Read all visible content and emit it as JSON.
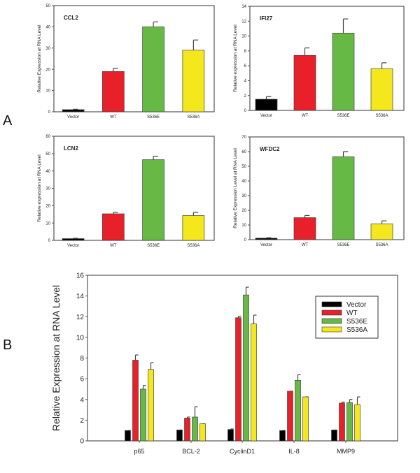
{
  "figure": {
    "panel_labels": [
      "A",
      "B"
    ]
  },
  "colors": {
    "Vector": "#000000",
    "WT": "#e8202a",
    "S536E": "#66b944",
    "S536A": "#f4e81c",
    "axis": "#555555"
  },
  "chart_data": [
    {
      "type": "bar",
      "panel": "A",
      "title": "CCL2",
      "ylabel": "Relative Expression at RNA Level",
      "categories": [
        "Vector",
        "WT",
        "S536E",
        "S536A"
      ],
      "values": [
        1,
        19,
        40,
        29
      ],
      "errors": [
        0.2,
        1.5,
        2.3,
        4.8
      ],
      "ylim": [
        0,
        50
      ],
      "yticks": [
        0,
        10,
        20,
        30,
        40,
        50
      ]
    },
    {
      "type": "bar",
      "panel": "A",
      "title": "IFI27",
      "ylabel": "Relative expression at RNA Level",
      "categories": [
        "Vector",
        "WT",
        "S536E",
        "S536A"
      ],
      "values": [
        1.5,
        7.4,
        10.4,
        5.6
      ],
      "errors": [
        0.35,
        1.0,
        1.9,
        0.8
      ],
      "ylim": [
        0,
        14
      ],
      "yticks": [
        0,
        2,
        4,
        6,
        8,
        10,
        12,
        14
      ]
    },
    {
      "type": "bar",
      "panel": "A",
      "title": "LCN2",
      "ylabel": "Relative expression at RNA Level",
      "categories": [
        "Vector",
        "WT",
        "S536E",
        "S536A"
      ],
      "values": [
        1,
        15.3,
        46.5,
        14.3
      ],
      "errors": [
        0.2,
        0.8,
        2,
        1.8
      ],
      "ylim": [
        0,
        60
      ],
      "yticks": [
        0,
        10,
        20,
        30,
        40,
        50,
        60
      ]
    },
    {
      "type": "bar",
      "panel": "A",
      "title": "WFDC2",
      "ylabel": "Relative Expression Level at RNA Level",
      "categories": [
        "Vector",
        "WT",
        "S536E",
        "S536A"
      ],
      "values": [
        1,
        15,
        56.5,
        10.8
      ],
      "errors": [
        0.3,
        1.5,
        3.5,
        2
      ],
      "ylim": [
        0,
        70
      ],
      "yticks": [
        0,
        10,
        20,
        30,
        40,
        50,
        60,
        70
      ]
    },
    {
      "type": "bar",
      "panel": "B",
      "title": "",
      "ylabel": "Relative Expression at RNA Level",
      "categories": [
        "p65",
        "BCL-2",
        "CyclinD1",
        "IL-8",
        "MMP9"
      ],
      "series": [
        {
          "name": "Vector",
          "values": [
            1,
            1.05,
            1.1,
            1.0,
            1.05
          ],
          "errors": [
            0,
            0,
            0.05,
            0,
            0
          ]
        },
        {
          "name": "WT",
          "values": [
            7.8,
            2.2,
            11.9,
            4.8,
            3.65
          ],
          "errors": [
            0.5,
            0.1,
            0.15,
            0,
            0.1
          ]
        },
        {
          "name": "S536E",
          "values": [
            5.0,
            2.3,
            14.1,
            5.85,
            3.7
          ],
          "errors": [
            0.35,
            1.0,
            0.75,
            0.55,
            0.3
          ]
        },
        {
          "name": "S536A",
          "values": [
            6.9,
            1.65,
            11.3,
            4.25,
            3.5
          ],
          "errors": [
            0.65,
            0,
            0.85,
            0,
            0.75
          ]
        }
      ],
      "ylim": [
        0,
        16
      ],
      "yticks": [
        0,
        2,
        4,
        6,
        8,
        10,
        12,
        14,
        16
      ],
      "legend": "top-right"
    }
  ]
}
